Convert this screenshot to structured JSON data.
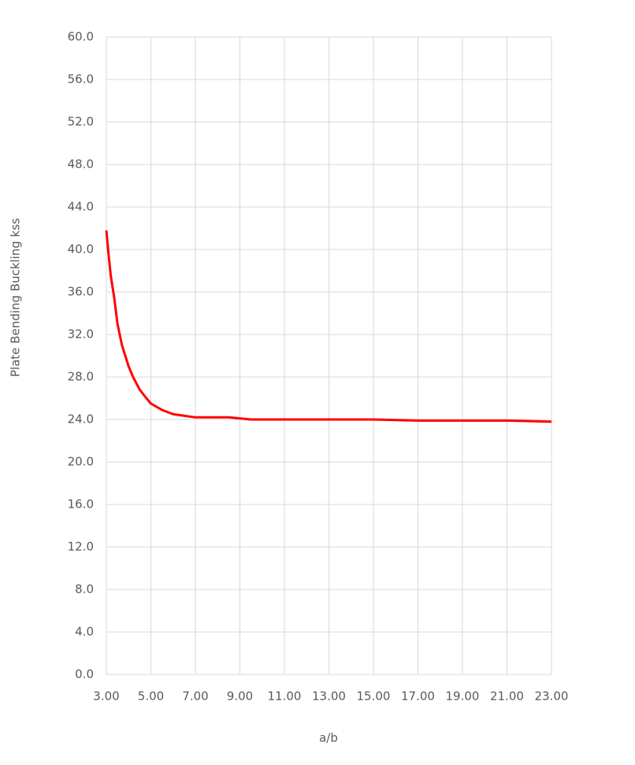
{
  "chart_data": {
    "type": "line",
    "x_label": "a/b",
    "y_label": "Plate Bending Buckling kss",
    "x": [
      3.0,
      3.1,
      3.2,
      3.35,
      3.5,
      3.7,
      4.0,
      4.2,
      4.5,
      4.8,
      5.0,
      5.5,
      6.0,
      7.0,
      8.5,
      9.5,
      15.0,
      17.0,
      21.0,
      23.0
    ],
    "series": [
      {
        "name": "kss",
        "color": "#ff0000",
        "values": [
          41.8,
          39.5,
          37.5,
          35.5,
          33.0,
          31.0,
          29.0,
          28.0,
          26.8,
          26.0,
          25.5,
          24.9,
          24.5,
          24.2,
          24.2,
          24.0,
          24.0,
          23.9,
          23.9,
          23.8
        ]
      }
    ],
    "xlim": [
      3,
      23
    ],
    "xticks": [
      {
        "value": 3,
        "label": "3.00"
      },
      {
        "value": 5,
        "label": "5.00"
      },
      {
        "value": 7,
        "label": "7.00"
      },
      {
        "value": 9,
        "label": "9.00"
      },
      {
        "value": 11,
        "label": "11.00"
      },
      {
        "value": 13,
        "label": "13.00"
      },
      {
        "value": 15,
        "label": "15.00"
      },
      {
        "value": 17,
        "label": "17.00"
      },
      {
        "value": 19,
        "label": "19.00"
      },
      {
        "value": 21,
        "label": "21.00"
      },
      {
        "value": 23,
        "label": "23.00"
      }
    ],
    "ylim": [
      0,
      60
    ],
    "yticks": [
      {
        "value": 0,
        "label": "0.0"
      },
      {
        "value": 4,
        "label": "4.0"
      },
      {
        "value": 8,
        "label": "8.0"
      },
      {
        "value": 12,
        "label": "12.0"
      },
      {
        "value": 16,
        "label": "16.0"
      },
      {
        "value": 20,
        "label": "20.0"
      },
      {
        "value": 24,
        "label": "24.0"
      },
      {
        "value": 28,
        "label": "28.0"
      },
      {
        "value": 32,
        "label": "32.0"
      },
      {
        "value": 36,
        "label": "36.0"
      },
      {
        "value": 40,
        "label": "40.0"
      },
      {
        "value": 44,
        "label": "44.0"
      },
      {
        "value": 48,
        "label": "48.0"
      },
      {
        "value": 52,
        "label": "52.0"
      },
      {
        "value": 56,
        "label": "56.0"
      },
      {
        "value": 60,
        "label": "60.0"
      }
    ],
    "grid": true
  }
}
